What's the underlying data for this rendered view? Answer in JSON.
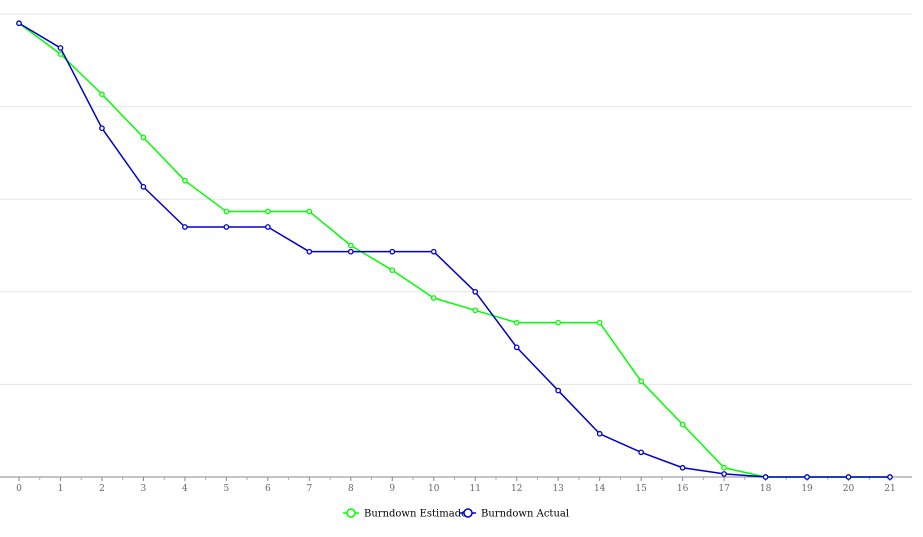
{
  "chart_data": {
    "type": "line",
    "title": "",
    "xlabel": "",
    "ylabel": "",
    "x": [
      0,
      1,
      2,
      3,
      4,
      5,
      6,
      7,
      8,
      9,
      10,
      11,
      12,
      13,
      14,
      15,
      16,
      17,
      18,
      19,
      20,
      21
    ],
    "ylim": [
      0,
      150
    ],
    "y_gridlines": [
      0,
      30,
      60,
      90,
      120,
      150
    ],
    "grid": "horizontal",
    "legend_position": "bottom",
    "series": [
      {
        "name": "Burndown Estimado",
        "color": "#00ff00",
        "values": [
          147,
          137,
          124,
          110,
          96,
          86,
          86,
          86,
          75,
          67,
          58,
          54,
          50,
          50,
          50,
          31,
          17,
          3,
          0,
          0,
          0,
          0
        ]
      },
      {
        "name": "Burndown Actual",
        "color": "#0000cc",
        "values": [
          147,
          139,
          113,
          94,
          81,
          81,
          81,
          73,
          73,
          73,
          73,
          60,
          42,
          28,
          14,
          8,
          3,
          1,
          0,
          0,
          0,
          0
        ]
      }
    ]
  }
}
